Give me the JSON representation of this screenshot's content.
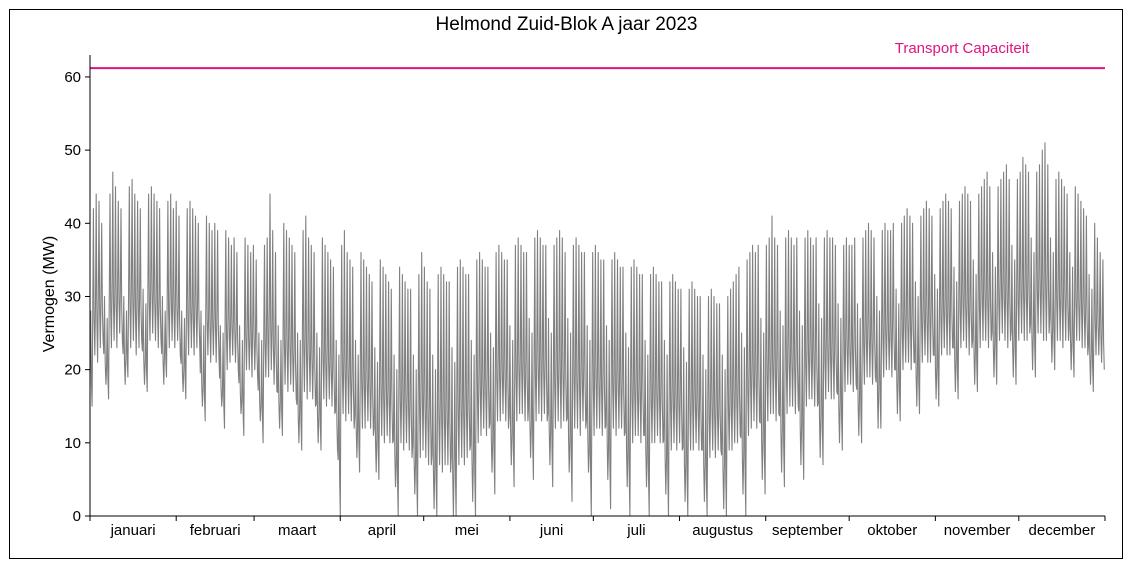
{
  "chart_data": {
    "type": "line",
    "title": "Helmond Zuid-Blok A jaar 2023",
    "xlabel": "",
    "ylabel": "Vermogen (MW)",
    "ylim": [
      0,
      63
    ],
    "yticks": [
      0,
      10,
      20,
      30,
      40,
      50,
      60
    ],
    "months": [
      "januari",
      "februari",
      "maart",
      "april",
      "mei",
      "juni",
      "juli",
      "augustus",
      "september",
      "oktober",
      "november",
      "december"
    ],
    "grid": false,
    "reference_line": {
      "label": "Transport Capaciteit",
      "value": 61.2,
      "color": "#e0147f"
    },
    "series": [
      {
        "color": "#808080",
        "resolution": "daily (min / max per day)",
        "daily_min": [
          15,
          22,
          21,
          23,
          24,
          18,
          16,
          23,
          24,
          23,
          25,
          24,
          18,
          19,
          23,
          24,
          22,
          23,
          24,
          18,
          17,
          24,
          25,
          24,
          23,
          24,
          18,
          19,
          23,
          24,
          23,
          24,
          22,
          17,
          16,
          22,
          23,
          22,
          23,
          24,
          15,
          13,
          22,
          21,
          22,
          21,
          22,
          15,
          12,
          20,
          21,
          22,
          21,
          20,
          14,
          11,
          20,
          20,
          19,
          20,
          19,
          13,
          10,
          19,
          19,
          20,
          18,
          17,
          12,
          11,
          18,
          17,
          18,
          17,
          16,
          10,
          9,
          17,
          16,
          17,
          16,
          15,
          10,
          9,
          16,
          15,
          16,
          15,
          14,
          9,
          0,
          14,
          13,
          14,
          13,
          12,
          8,
          6,
          12,
          12,
          13,
          12,
          11,
          6,
          5,
          11,
          10,
          11,
          10,
          10,
          4,
          0,
          10,
          9,
          10,
          9,
          8,
          3,
          0,
          8,
          9,
          8,
          7,
          7,
          1,
          0,
          7,
          6,
          7,
          7,
          6,
          0,
          0,
          7,
          8,
          7,
          8,
          9,
          2,
          0,
          10,
          11,
          12,
          11,
          12,
          6,
          3,
          13,
          13,
          14,
          13,
          12,
          7,
          4,
          13,
          14,
          14,
          13,
          13,
          8,
          5,
          13,
          14,
          13,
          14,
          13,
          7,
          4,
          12,
          13,
          12,
          13,
          13,
          6,
          2,
          12,
          12,
          11,
          13,
          12,
          6,
          0,
          11,
          12,
          12,
          11,
          12,
          5,
          1,
          12,
          11,
          12,
          12,
          11,
          4,
          0,
          10,
          11,
          11,
          10,
          11,
          4,
          0,
          10,
          10,
          11,
          10,
          10,
          3,
          0,
          9,
          10,
          9,
          10,
          9,
          2,
          0,
          9,
          9,
          10,
          9,
          9,
          2,
          0,
          8,
          9,
          8,
          9,
          9,
          1,
          0,
          9,
          9,
          10,
          10,
          11,
          3,
          0,
          11,
          12,
          13,
          12,
          13,
          5,
          3,
          13,
          14,
          14,
          13,
          14,
          6,
          4,
          14,
          15,
          15,
          14,
          15,
          7,
          5,
          15,
          16,
          16,
          15,
          15,
          8,
          7,
          16,
          17,
          16,
          16,
          17,
          10,
          9,
          17,
          18,
          18,
          17,
          18,
          11,
          10,
          18,
          19,
          19,
          18,
          19,
          12,
          12,
          19,
          20,
          20,
          19,
          20,
          14,
          13,
          20,
          21,
          21,
          20,
          21,
          15,
          14,
          21,
          22,
          21,
          21,
          22,
          16,
          15,
          22,
          23,
          22,
          22,
          23,
          17,
          16,
          23,
          24,
          23,
          22,
          23,
          18,
          17,
          23,
          24,
          24,
          23,
          24,
          19,
          18,
          24,
          25,
          24,
          23,
          24,
          19,
          18,
          24,
          25,
          24,
          24,
          25,
          20,
          19,
          25,
          25,
          24,
          24,
          25,
          21,
          20,
          24,
          24,
          23,
          24,
          24,
          20,
          19,
          24,
          24,
          23,
          23,
          22,
          18,
          17,
          22,
          22,
          21,
          20
        ],
        "daily_max": [
          28,
          42,
          44,
          43,
          40,
          30,
          27,
          44,
          47,
          45,
          43,
          42,
          30,
          28,
          45,
          46,
          44,
          43,
          42,
          31,
          29,
          44,
          45,
          44,
          43,
          42,
          30,
          28,
          43,
          44,
          42,
          43,
          41,
          28,
          27,
          42,
          43,
          42,
          41,
          40,
          28,
          26,
          41,
          40,
          39,
          40,
          39,
          26,
          25,
          39,
          38,
          37,
          38,
          36,
          26,
          24,
          38,
          37,
          36,
          37,
          35,
          25,
          24,
          37,
          38,
          44,
          39,
          36,
          26,
          24,
          40,
          39,
          38,
          37,
          36,
          25,
          24,
          39,
          41,
          38,
          37,
          36,
          25,
          23,
          38,
          37,
          36,
          35,
          34,
          24,
          22,
          37,
          39,
          36,
          35,
          34,
          24,
          22,
          36,
          35,
          34,
          33,
          32,
          23,
          21,
          35,
          34,
          33,
          32,
          31,
          22,
          20,
          34,
          33,
          32,
          31,
          31,
          22,
          20,
          33,
          36,
          34,
          32,
          31,
          22,
          20,
          33,
          34,
          33,
          32,
          32,
          23,
          21,
          34,
          35,
          34,
          33,
          33,
          24,
          22,
          35,
          36,
          35,
          34,
          34,
          25,
          23,
          36,
          37,
          36,
          35,
          35,
          26,
          24,
          37,
          38,
          37,
          36,
          36,
          27,
          25,
          38,
          39,
          38,
          37,
          37,
          27,
          25,
          37,
          38,
          39,
          38,
          36,
          27,
          25,
          37,
          38,
          37,
          36,
          36,
          26,
          24,
          36,
          37,
          36,
          35,
          35,
          26,
          24,
          35,
          36,
          35,
          34,
          34,
          25,
          23,
          34,
          35,
          34,
          33,
          33,
          24,
          22,
          33,
          34,
          33,
          32,
          32,
          24,
          22,
          32,
          33,
          32,
          31,
          31,
          23,
          21,
          31,
          32,
          31,
          30,
          30,
          22,
          20,
          30,
          31,
          30,
          29,
          29,
          22,
          20,
          30,
          31,
          32,
          33,
          34,
          25,
          23,
          35,
          36,
          37,
          36,
          37,
          27,
          25,
          37,
          38,
          41,
          38,
          37,
          28,
          26,
          38,
          39,
          38,
          37,
          38,
          28,
          26,
          38,
          39,
          38,
          37,
          38,
          29,
          27,
          38,
          39,
          38,
          38,
          37,
          29,
          27,
          37,
          38,
          37,
          37,
          38,
          29,
          27,
          38,
          39,
          40,
          39,
          38,
          30,
          28,
          39,
          40,
          39,
          39,
          40,
          31,
          29,
          40,
          41,
          42,
          41,
          40,
          32,
          30,
          41,
          42,
          43,
          42,
          41,
          33,
          31,
          42,
          43,
          44,
          43,
          42,
          34,
          32,
          43,
          44,
          45,
          44,
          43,
          35,
          33,
          44,
          45,
          46,
          47,
          45,
          36,
          34,
          45,
          46,
          47,
          48,
          46,
          37,
          35,
          46,
          47,
          49,
          48,
          47,
          38,
          36,
          47,
          48,
          50,
          51,
          48,
          38,
          36,
          46,
          47,
          46,
          45,
          44,
          36,
          34,
          45,
          44,
          43,
          42,
          41,
          33,
          31,
          40,
          38,
          36,
          35,
          34,
          32,
          33,
          35,
          36,
          35,
          34
        ]
      }
    ]
  }
}
